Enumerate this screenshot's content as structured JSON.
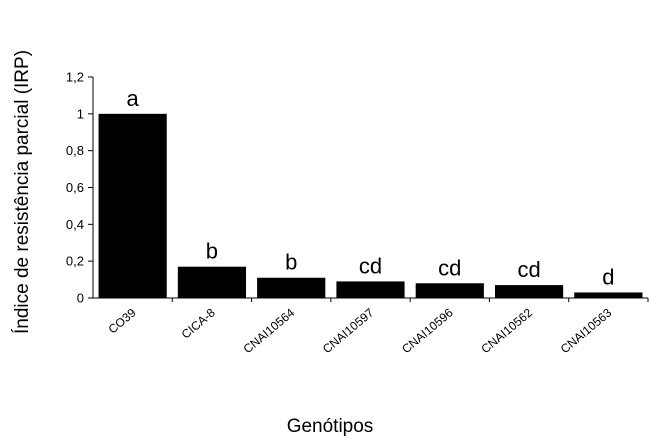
{
  "chart_data": {
    "type": "bar",
    "title": "",
    "xlabel": "Genótipos",
    "ylabel": "Índice de resistência parcial (IRP)",
    "categories": [
      "CO39",
      "CICA-8",
      "CNAI10564",
      "CNAI10597",
      "CNAI10596",
      "CNAI10562",
      "CNAI10563"
    ],
    "values": [
      1.0,
      0.17,
      0.11,
      0.09,
      0.08,
      0.07,
      0.03
    ],
    "significance_letters": [
      "a",
      "b",
      "b",
      "cd",
      "cd",
      "cd",
      "d"
    ],
    "yticks": [
      "0",
      "0,2",
      "0,4",
      "0,6",
      "0,8",
      "1",
      "1,2"
    ],
    "ylim": [
      0,
      1.2
    ],
    "grid": false,
    "legend": "none",
    "bar_color": "#000000",
    "axis_color": "#000000"
  }
}
